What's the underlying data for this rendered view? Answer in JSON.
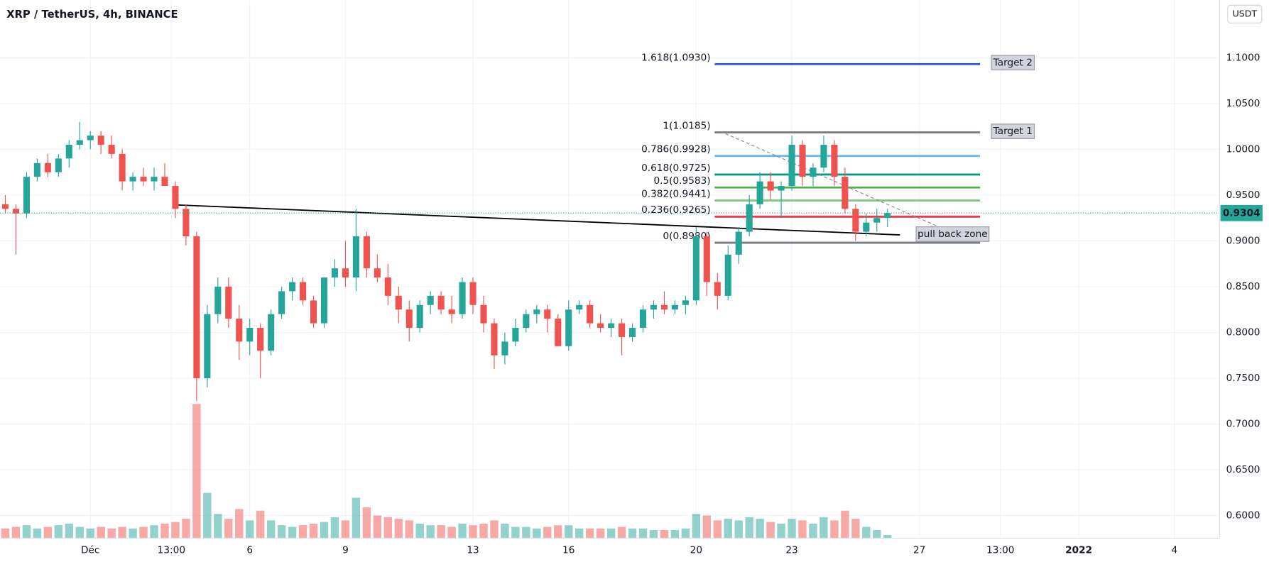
{
  "chart_data": {
    "type": "candlestick",
    "title": "XRP / TetherUS, 4h, BINANCE",
    "currency": "USDT",
    "up_color": "#26a69a",
    "down_color": "#ef5350",
    "grid": true,
    "xlim": [
      -68,
      850
    ],
    "xticks": [
      {
        "value": 0,
        "label": "Déc"
      },
      {
        "value": 61,
        "label": "13:00"
      },
      {
        "value": 120,
        "label": "6"
      },
      {
        "value": 192,
        "label": "9"
      },
      {
        "value": 288,
        "label": "13"
      },
      {
        "value": 360,
        "label": "16"
      },
      {
        "value": 456,
        "label": "20"
      },
      {
        "value": 528,
        "label": "23"
      },
      {
        "value": 624,
        "label": "27"
      },
      {
        "value": 685,
        "label": "13:00"
      },
      {
        "value": 744,
        "label": "2022"
      },
      {
        "value": 816,
        "label": "4"
      }
    ],
    "ylim": [
      0.5753,
      1.1627
    ],
    "yticks": [
      {
        "value": 0.6,
        "label": "0.6000"
      },
      {
        "value": 0.65,
        "label": "0.6500"
      },
      {
        "value": 0.7,
        "label": "0.7000"
      },
      {
        "value": 0.75,
        "label": "0.7500"
      },
      {
        "value": 0.8,
        "label": "0.8000"
      },
      {
        "value": 0.85,
        "label": "0.8500"
      },
      {
        "value": 0.9,
        "label": "0.9000"
      },
      {
        "value": 0.95,
        "label": "0.9500"
      },
      {
        "value": 1.0,
        "label": "1.0000"
      },
      {
        "value": 1.05,
        "label": "1.0500"
      },
      {
        "value": 1.1,
        "label": "1.1000"
      }
    ],
    "x": [
      -64,
      -56,
      -48,
      -40,
      -32,
      -24,
      -16,
      -8,
      0,
      8,
      16,
      24,
      32,
      40,
      48,
      56,
      64,
      72,
      80,
      88,
      96,
      104,
      112,
      120,
      128,
      136,
      144,
      152,
      160,
      168,
      176,
      184,
      192,
      200,
      208,
      216,
      224,
      232,
      240,
      248,
      256,
      264,
      272,
      280,
      288,
      296,
      304,
      312,
      320,
      328,
      336,
      344,
      352,
      360,
      368,
      376,
      384,
      392,
      400,
      408,
      416,
      424,
      432,
      440,
      448,
      456,
      464,
      472,
      480,
      488,
      496,
      504,
      512,
      520,
      528,
      536,
      544,
      552,
      560,
      568,
      576,
      584,
      592,
      600
    ],
    "open": [
      0.94,
      0.935,
      0.93,
      0.97,
      0.985,
      0.975,
      0.99,
      1.005,
      1.01,
      1.015,
      1.005,
      0.995,
      0.965,
      0.97,
      0.965,
      0.97,
      0.96,
      0.935,
      0.905,
      0.75,
      0.82,
      0.85,
      0.815,
      0.79,
      0.805,
      0.78,
      0.82,
      0.845,
      0.855,
      0.835,
      0.81,
      0.86,
      0.87,
      0.86,
      0.905,
      0.87,
      0.86,
      0.84,
      0.825,
      0.805,
      0.83,
      0.84,
      0.825,
      0.82,
      0.855,
      0.83,
      0.81,
      0.775,
      0.79,
      0.805,
      0.82,
      0.825,
      0.815,
      0.785,
      0.825,
      0.83,
      0.81,
      0.805,
      0.81,
      0.795,
      0.805,
      0.825,
      0.83,
      0.825,
      0.83,
      0.835,
      0.905,
      0.855,
      0.84,
      0.885,
      0.91,
      0.94,
      0.965,
      0.955,
      0.96,
      1.005,
      0.97,
      0.98,
      1.005,
      0.97,
      0.935,
      0.91,
      0.92,
      0.925
    ],
    "high": [
      0.95,
      0.94,
      0.975,
      0.99,
      0.995,
      0.995,
      1.01,
      1.03,
      1.02,
      1.02,
      1.015,
      1.0,
      0.975,
      0.98,
      0.98,
      0.985,
      0.965,
      0.94,
      0.91,
      0.83,
      0.86,
      0.86,
      0.83,
      0.815,
      0.81,
      0.825,
      0.85,
      0.86,
      0.86,
      0.84,
      0.86,
      0.88,
      0.9,
      0.935,
      0.91,
      0.885,
      0.875,
      0.85,
      0.835,
      0.835,
      0.845,
      0.845,
      0.84,
      0.86,
      0.86,
      0.84,
      0.815,
      0.8,
      0.815,
      0.825,
      0.83,
      0.83,
      0.82,
      0.835,
      0.835,
      0.835,
      0.82,
      0.815,
      0.815,
      0.81,
      0.83,
      0.835,
      0.845,
      0.835,
      0.84,
      0.915,
      0.91,
      0.865,
      0.895,
      0.915,
      0.95,
      0.975,
      0.975,
      0.965,
      1.015,
      1.01,
      0.985,
      1.015,
      1.01,
      0.98,
      0.94,
      0.93,
      0.935,
      0.935
    ],
    "low": [
      0.93,
      0.885,
      0.925,
      0.965,
      0.97,
      0.97,
      0.98,
      1.0,
      1.0,
      0.995,
      0.99,
      0.955,
      0.955,
      0.96,
      0.955,
      0.96,
      0.925,
      0.895,
      0.725,
      0.74,
      0.81,
      0.805,
      0.77,
      0.775,
      0.75,
      0.775,
      0.815,
      0.835,
      0.83,
      0.805,
      0.805,
      0.85,
      0.85,
      0.845,
      0.86,
      0.855,
      0.83,
      0.81,
      0.79,
      0.8,
      0.82,
      0.82,
      0.81,
      0.815,
      0.82,
      0.8,
      0.76,
      0.765,
      0.785,
      0.8,
      0.81,
      0.8,
      0.785,
      0.78,
      0.82,
      0.805,
      0.8,
      0.795,
      0.775,
      0.79,
      0.8,
      0.815,
      0.82,
      0.82,
      0.82,
      0.83,
      0.84,
      0.825,
      0.835,
      0.875,
      0.905,
      0.935,
      0.945,
      0.925,
      0.955,
      0.96,
      0.96,
      0.975,
      0.96,
      0.93,
      0.9,
      0.905,
      0.91,
      0.915
    ],
    "close": [
      0.935,
      0.93,
      0.97,
      0.985,
      0.975,
      0.99,
      1.005,
      1.01,
      1.015,
      1.005,
      0.995,
      0.965,
      0.97,
      0.965,
      0.97,
      0.96,
      0.935,
      0.905,
      0.75,
      0.82,
      0.85,
      0.815,
      0.79,
      0.805,
      0.78,
      0.82,
      0.845,
      0.855,
      0.835,
      0.81,
      0.86,
      0.87,
      0.86,
      0.905,
      0.87,
      0.86,
      0.84,
      0.825,
      0.805,
      0.83,
      0.84,
      0.825,
      0.82,
      0.855,
      0.83,
      0.81,
      0.775,
      0.79,
      0.805,
      0.82,
      0.825,
      0.815,
      0.785,
      0.825,
      0.83,
      0.81,
      0.805,
      0.81,
      0.795,
      0.805,
      0.825,
      0.83,
      0.825,
      0.83,
      0.835,
      0.905,
      0.855,
      0.84,
      0.885,
      0.91,
      0.94,
      0.965,
      0.955,
      0.96,
      1.005,
      0.97,
      0.98,
      1.005,
      0.97,
      0.935,
      0.91,
      0.92,
      0.925,
      0.9304
    ],
    "volume": [
      12,
      14,
      16,
      12,
      14,
      16,
      18,
      14,
      12,
      14,
      12,
      14,
      12,
      14,
      16,
      18,
      20,
      24,
      166,
      56,
      30,
      24,
      36,
      22,
      34,
      22,
      16,
      14,
      16,
      18,
      20,
      26,
      22,
      50,
      38,
      28,
      26,
      24,
      22,
      18,
      16,
      16,
      14,
      18,
      16,
      18,
      22,
      18,
      14,
      14,
      12,
      14,
      16,
      16,
      12,
      12,
      12,
      12,
      14,
      12,
      12,
      10,
      10,
      10,
      12,
      30,
      28,
      22,
      24,
      22,
      26,
      24,
      20,
      18,
      24,
      22,
      18,
      26,
      22,
      34,
      24,
      14,
      10,
      4
    ],
    "fib_levels": [
      {
        "label": "1.618(1.0930)",
        "value": 1.093,
        "color": "#2962ff"
      },
      {
        "label": "1(1.0185)",
        "value": 1.0185,
        "color": "#787b86"
      },
      {
        "label": "0.786(0.9928)",
        "value": 0.9928,
        "color": "#64b5f6"
      },
      {
        "label": "0.618(0.9725)",
        "value": 0.9725,
        "color": "#089981"
      },
      {
        "label": "0.5(0.9583)",
        "value": 0.9583,
        "color": "#4caf50"
      },
      {
        "label": "0.382(0.9441)",
        "value": 0.9441,
        "color": "#81c784"
      },
      {
        "label": "0.236(0.9265)",
        "value": 0.9265,
        "color": "#f23645"
      },
      {
        "label": "0(0.8980)",
        "value": 0.898,
        "color": "#787b86"
      }
    ],
    "annotations": [
      "Target 2",
      "Target 1",
      "pull back zone"
    ]
  }
}
